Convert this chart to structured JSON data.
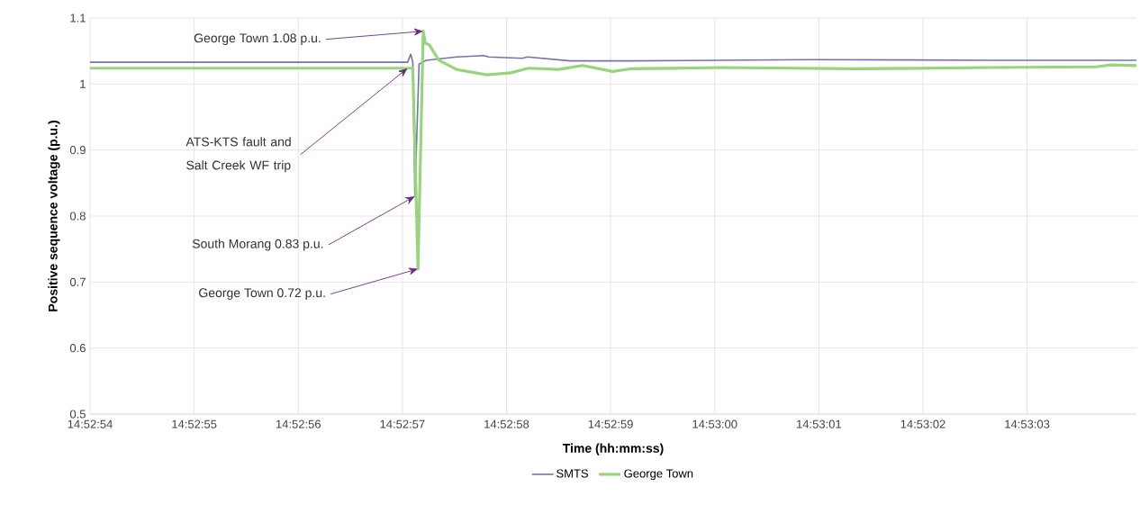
{
  "chart_data": {
    "type": "line",
    "xlabel": "Time (hh:mm:ss)",
    "ylabel": "Positive sequence voltage (p.u.)",
    "xlim": [
      53574,
      53584.05
    ],
    "ylim": [
      0.5,
      1.1
    ],
    "xticks": [
      {
        "value": 53574,
        "label": "14:52:54"
      },
      {
        "value": 53575,
        "label": "14:52:55"
      },
      {
        "value": 53576,
        "label": "14:52:56"
      },
      {
        "value": 53577,
        "label": "14:52:57"
      },
      {
        "value": 53578,
        "label": "14:52:58"
      },
      {
        "value": 53579,
        "label": "14:52:59"
      },
      {
        "value": 53580,
        "label": "14:53:00"
      },
      {
        "value": 53581,
        "label": "14:53:01"
      },
      {
        "value": 53582,
        "label": "14:53:02"
      },
      {
        "value": 53583,
        "label": "14:53:03"
      }
    ],
    "yticks": [
      0.5,
      0.6,
      0.7,
      0.8,
      0.9,
      1,
      1.1
    ],
    "grid": true,
    "legend": "bottom",
    "series": [
      {
        "name": "SMTS",
        "color": "#7373aa",
        "x": [
          53574.0,
          53575.5,
          53577.05,
          53577.08,
          53577.1,
          53577.12,
          53577.16,
          53577.23,
          53577.52,
          53577.78,
          53577.83,
          53578.15,
          53578.2,
          53578.61,
          53579.02,
          53579.19,
          53580.92,
          53582.65,
          53584.05
        ],
        "values": [
          1.033,
          1.033,
          1.033,
          1.045,
          1.033,
          0.83,
          1.03,
          1.036,
          1.041,
          1.043,
          1.041,
          1.039,
          1.041,
          1.035,
          1.035,
          1.035,
          1.037,
          1.036,
          1.036
        ]
      },
      {
        "name": "George Town",
        "color": "#98d47e",
        "x": [
          53574.0,
          53577.1,
          53577.15,
          53577.2,
          53577.22,
          53577.26,
          53577.35,
          53577.52,
          53577.81,
          53578.04,
          53578.21,
          53578.5,
          53578.73,
          53579.02,
          53579.19,
          53580.06,
          53581.35,
          53582.65,
          53583.66,
          53583.8,
          53584.05
        ],
        "values": [
          1.024,
          1.024,
          0.72,
          1.08,
          1.062,
          1.059,
          1.036,
          1.022,
          1.014,
          1.017,
          1.024,
          1.022,
          1.028,
          1.019,
          1.023,
          1.025,
          1.023,
          1.025,
          1.026,
          1.029,
          1.028
        ]
      }
    ],
    "annotations": [
      {
        "text": "George Town 1.08 p.u.",
        "x": 53577.2,
        "y": 1.08
      },
      {
        "text": "ATS-KTS fault and Salt Creek WF trip",
        "x": 53577.05,
        "y": 1.024
      },
      {
        "text": "South Morang 0.83 p.u.",
        "x": 53577.12,
        "y": 0.83
      },
      {
        "text": "George Town 0.72 p.u.",
        "x": 53577.15,
        "y": 0.72
      }
    ]
  }
}
